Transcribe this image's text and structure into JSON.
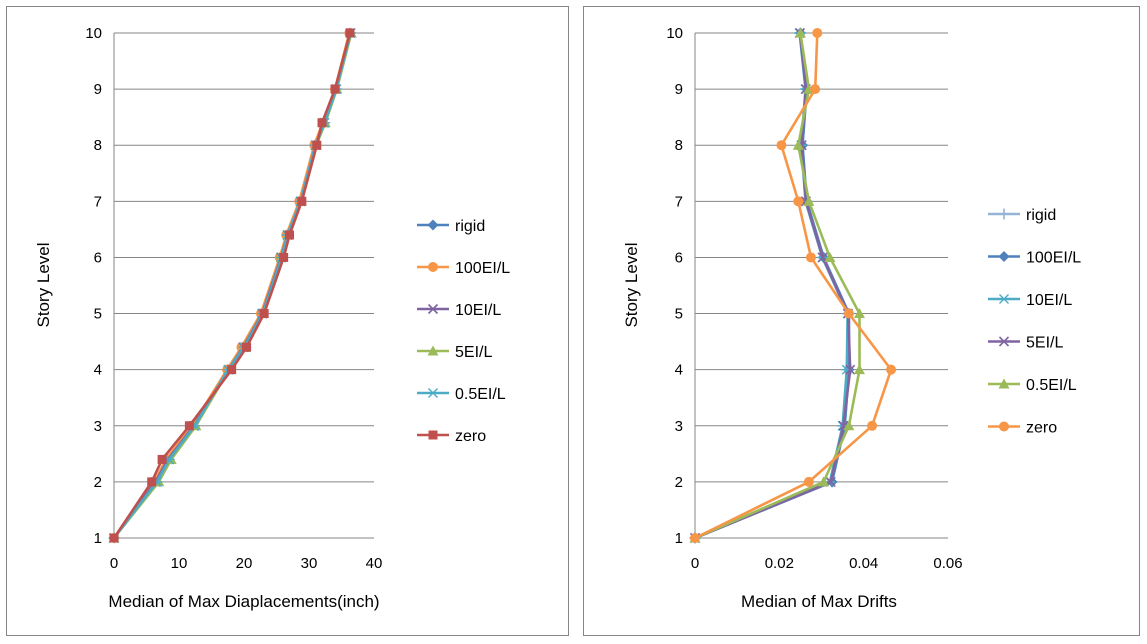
{
  "chart_data": [
    {
      "type": "line",
      "xlabel": "Median of Max Diaplacements(inch)",
      "ylabel": "Story Level",
      "xlim": [
        0,
        40
      ],
      "ylim": [
        1,
        10
      ],
      "x_ticks": [
        "0",
        "10",
        "20",
        "30",
        "40"
      ],
      "y_ticks": [
        "1",
        "2",
        "3",
        "4",
        "5",
        "6",
        "7",
        "8",
        "9",
        "10"
      ],
      "grid": "horizontal",
      "legend_position": "right",
      "series": [
        {
          "name": "rigid",
          "color": "#4f81bd",
          "marker": "diamond",
          "points": [
            [
              0,
              1
            ],
            [
              6.3,
              2
            ],
            [
              8.2,
              2.4
            ],
            [
              12.2,
              3
            ],
            [
              17.5,
              4
            ],
            [
              19.8,
              4.4
            ],
            [
              22.7,
              5
            ],
            [
              25.6,
              6
            ],
            [
              26.6,
              6.4
            ],
            [
              28.6,
              7
            ],
            [
              30.9,
              8
            ],
            [
              32.2,
              8.4
            ],
            [
              34.1,
              9
            ],
            [
              36.3,
              10
            ]
          ]
        },
        {
          "name": "100EI/L",
          "color": "#f79646",
          "marker": "circle",
          "points": [
            [
              0,
              1
            ],
            [
              6.2,
              2
            ],
            [
              8.0,
              2.4
            ],
            [
              12.0,
              3
            ],
            [
              17.4,
              4
            ],
            [
              19.6,
              4.4
            ],
            [
              22.6,
              5
            ],
            [
              25.5,
              6
            ],
            [
              26.5,
              6.4
            ],
            [
              28.5,
              7
            ],
            [
              30.8,
              8
            ],
            [
              32.1,
              8.4
            ],
            [
              34.0,
              9
            ],
            [
              36.2,
              10
            ]
          ]
        },
        {
          "name": "10EI/L",
          "color": "#8064a2",
          "marker": "x",
          "points": [
            [
              0,
              1
            ],
            [
              6.4,
              2
            ],
            [
              8.3,
              2.4
            ],
            [
              12.3,
              3
            ],
            [
              17.6,
              4
            ],
            [
              19.9,
              4.4
            ],
            [
              22.8,
              5
            ],
            [
              25.7,
              6
            ],
            [
              26.7,
              6.4
            ],
            [
              28.7,
              7
            ],
            [
              31.0,
              8
            ],
            [
              32.3,
              8.4
            ],
            [
              34.2,
              9
            ],
            [
              36.4,
              10
            ]
          ]
        },
        {
          "name": "5EI/L",
          "color": "#9bbb59",
          "marker": "triangle",
          "points": [
            [
              0,
              1
            ],
            [
              6.9,
              2
            ],
            [
              8.8,
              2.4
            ],
            [
              12.6,
              3
            ],
            [
              17.7,
              4
            ],
            [
              20.1,
              4.4
            ],
            [
              23.0,
              5
            ],
            [
              25.8,
              6
            ],
            [
              26.8,
              6.4
            ],
            [
              28.8,
              7
            ],
            [
              31.1,
              8
            ],
            [
              32.5,
              8.4
            ],
            [
              34.3,
              9
            ],
            [
              36.5,
              10
            ]
          ]
        },
        {
          "name": "0.5EI/L",
          "color": "#4bacc6",
          "marker": "star",
          "points": [
            [
              0,
              1
            ],
            [
              6.6,
              2
            ],
            [
              8.5,
              2.4
            ],
            [
              12.4,
              3
            ],
            [
              17.6,
              4
            ],
            [
              20.0,
              4.4
            ],
            [
              22.9,
              5
            ],
            [
              25.8,
              6
            ],
            [
              26.7,
              6.4
            ],
            [
              28.7,
              7
            ],
            [
              31.0,
              8
            ],
            [
              32.4,
              8.4
            ],
            [
              34.2,
              9
            ],
            [
              36.4,
              10
            ]
          ]
        },
        {
          "name": "zero",
          "color": "#c0504d",
          "marker": "square",
          "points": [
            [
              0,
              1
            ],
            [
              5.8,
              2
            ],
            [
              7.4,
              2.4
            ],
            [
              11.6,
              3
            ],
            [
              18.1,
              4
            ],
            [
              20.4,
              4.4
            ],
            [
              23.1,
              5
            ],
            [
              26.1,
              6
            ],
            [
              27.0,
              6.4
            ],
            [
              28.9,
              7
            ],
            [
              31.2,
              8
            ],
            [
              32.0,
              8.4
            ],
            [
              34.0,
              9
            ],
            [
              36.3,
              10
            ]
          ]
        }
      ]
    },
    {
      "type": "line",
      "xlabel": "Median of Max Drifts",
      "ylabel": "Story Level",
      "xlim": [
        0,
        0.06
      ],
      "ylim": [
        1,
        10
      ],
      "x_ticks": [
        "0",
        "0.02",
        "0.04",
        "0.06"
      ],
      "y_ticks": [
        "1",
        "2",
        "3",
        "4",
        "5",
        "6",
        "7",
        "8",
        "9",
        "10"
      ],
      "grid": "horizontal",
      "legend_position": "right",
      "series": [
        {
          "name": "rigid",
          "color": "#95b3d7",
          "marker": "plus",
          "points": [
            [
              0,
              1
            ],
            [
              0.0325,
              2
            ],
            [
              0.0355,
              3
            ],
            [
              0.0365,
              4
            ],
            [
              0.0365,
              5
            ],
            [
              0.0305,
              6
            ],
            [
              0.0265,
              7
            ],
            [
              0.0255,
              8
            ],
            [
              0.0265,
              9
            ],
            [
              0.025,
              10
            ]
          ]
        },
        {
          "name": "100EI/L",
          "color": "#4f81bd",
          "marker": "diamond",
          "points": [
            [
              0,
              1
            ],
            [
              0.0325,
              2
            ],
            [
              0.0355,
              3
            ],
            [
              0.0365,
              4
            ],
            [
              0.0365,
              5
            ],
            [
              0.0305,
              6
            ],
            [
              0.0265,
              7
            ],
            [
              0.0255,
              8
            ],
            [
              0.0265,
              9
            ],
            [
              0.025,
              10
            ]
          ]
        },
        {
          "name": "10EI/L",
          "color": "#4bacc6",
          "marker": "star",
          "points": [
            [
              0,
              1
            ],
            [
              0.032,
              2
            ],
            [
              0.035,
              3
            ],
            [
              0.036,
              4
            ],
            [
              0.0362,
              5
            ],
            [
              0.0302,
              6
            ],
            [
              0.0262,
              7
            ],
            [
              0.0252,
              8
            ],
            [
              0.0262,
              9
            ],
            [
              0.0248,
              10
            ]
          ]
        },
        {
          "name": "5EI/L",
          "color": "#8064a2",
          "marker": "x",
          "points": [
            [
              0,
              1
            ],
            [
              0.0322,
              2
            ],
            [
              0.0352,
              3
            ],
            [
              0.0368,
              4
            ],
            [
              0.0363,
              5
            ],
            [
              0.0303,
              6
            ],
            [
              0.0263,
              7
            ],
            [
              0.0253,
              8
            ],
            [
              0.0263,
              9
            ],
            [
              0.0249,
              10
            ]
          ]
        },
        {
          "name": "0.5EI/L",
          "color": "#9bbb59",
          "marker": "triangle",
          "points": [
            [
              0,
              1
            ],
            [
              0.0305,
              2
            ],
            [
              0.0365,
              3
            ],
            [
              0.039,
              4
            ],
            [
              0.039,
              5
            ],
            [
              0.032,
              6
            ],
            [
              0.027,
              7
            ],
            [
              0.0245,
              8
            ],
            [
              0.027,
              9
            ],
            [
              0.025,
              10
            ]
          ]
        },
        {
          "name": "zero",
          "color": "#f79646",
          "marker": "circle",
          "points": [
            [
              0,
              1
            ],
            [
              0.027,
              2
            ],
            [
              0.042,
              3
            ],
            [
              0.0465,
              4
            ],
            [
              0.0365,
              5
            ],
            [
              0.0275,
              6
            ],
            [
              0.0245,
              7
            ],
            [
              0.0205,
              8
            ],
            [
              0.0285,
              9
            ],
            [
              0.029,
              10
            ]
          ]
        }
      ]
    }
  ]
}
